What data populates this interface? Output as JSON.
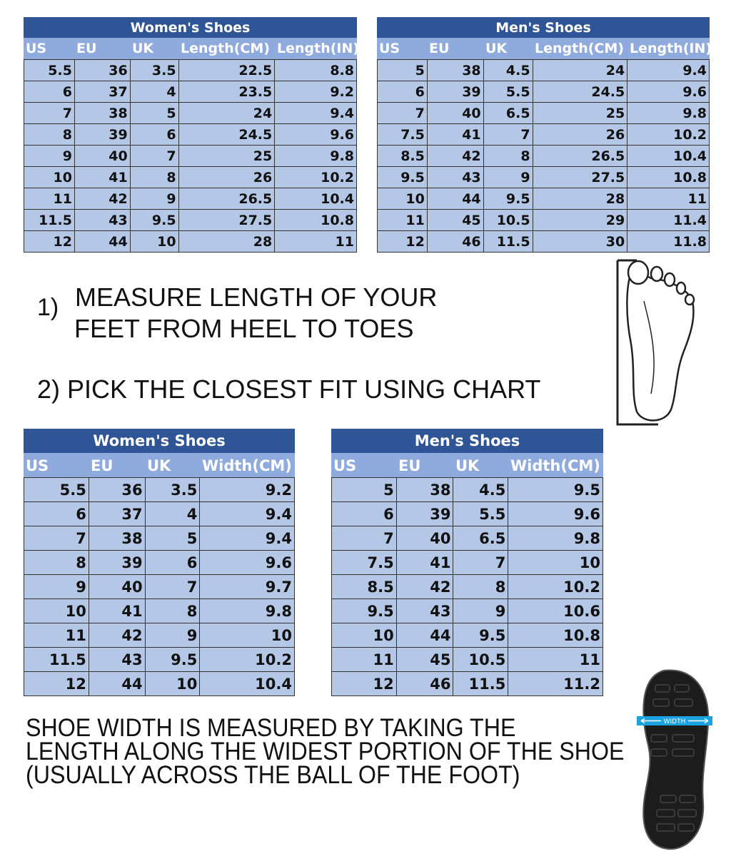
{
  "tables": {
    "women_length": {
      "title": "Women's Shoes",
      "headers": [
        "US",
        "EU",
        "UK",
        "Length(CM)",
        "Length(IN)"
      ],
      "rows": [
        [
          "5.5",
          "36",
          "3.5",
          "22.5",
          "8.8"
        ],
        [
          "6",
          "37",
          "4",
          "23.5",
          "9.2"
        ],
        [
          "7",
          "38",
          "5",
          "24",
          "9.4"
        ],
        [
          "8",
          "39",
          "6",
          "24.5",
          "9.6"
        ],
        [
          "9",
          "40",
          "7",
          "25",
          "9.8"
        ],
        [
          "10",
          "41",
          "8",
          "26",
          "10.2"
        ],
        [
          "11",
          "42",
          "9",
          "26.5",
          "10.4"
        ],
        [
          "11.5",
          "43",
          "9.5",
          "27.5",
          "10.8"
        ],
        [
          "12",
          "44",
          "10",
          "28",
          "11"
        ]
      ]
    },
    "men_length": {
      "title": "Men's Shoes",
      "headers": [
        "US",
        "EU",
        "UK",
        "Length(CM)",
        "Length(IN)"
      ],
      "rows": [
        [
          "5",
          "38",
          "4.5",
          "24",
          "9.4"
        ],
        [
          "6",
          "39",
          "5.5",
          "24.5",
          "9.6"
        ],
        [
          "7",
          "40",
          "6.5",
          "25",
          "9.8"
        ],
        [
          "7.5",
          "41",
          "7",
          "26",
          "10.2"
        ],
        [
          "8.5",
          "42",
          "8",
          "26.5",
          "10.4"
        ],
        [
          "9.5",
          "43",
          "9",
          "27.5",
          "10.8"
        ],
        [
          "10",
          "44",
          "9.5",
          "28",
          "11"
        ],
        [
          "11",
          "45",
          "10.5",
          "29",
          "11.4"
        ],
        [
          "12",
          "46",
          "11.5",
          "30",
          "11.8"
        ]
      ]
    },
    "women_width": {
      "title": "Women's Shoes",
      "headers": [
        "US",
        "EU",
        "UK",
        "Width(CM)"
      ],
      "rows": [
        [
          "5.5",
          "36",
          "3.5",
          "9.2"
        ],
        [
          "6",
          "37",
          "4",
          "9.4"
        ],
        [
          "7",
          "38",
          "5",
          "9.4"
        ],
        [
          "8",
          "39",
          "6",
          "9.6"
        ],
        [
          "9",
          "40",
          "7",
          "9.7"
        ],
        [
          "10",
          "41",
          "8",
          "9.8"
        ],
        [
          "11",
          "42",
          "9",
          "10"
        ],
        [
          "11.5",
          "43",
          "9.5",
          "10.2"
        ],
        [
          "12",
          "44",
          "10",
          "10.4"
        ]
      ]
    },
    "men_width": {
      "title": "Men's Shoes",
      "headers": [
        "US",
        "EU",
        "UK",
        "Width(CM)"
      ],
      "rows": [
        [
          "5",
          "38",
          "4.5",
          "9.5"
        ],
        [
          "6",
          "39",
          "5.5",
          "9.6"
        ],
        [
          "7",
          "40",
          "6.5",
          "9.8"
        ],
        [
          "7.5",
          "41",
          "7",
          "10"
        ],
        [
          "8.5",
          "42",
          "8",
          "10.2"
        ],
        [
          "9.5",
          "43",
          "9",
          "10.6"
        ],
        [
          "10",
          "44",
          "9.5",
          "10.8"
        ],
        [
          "11",
          "45",
          "10.5",
          "11"
        ],
        [
          "12",
          "46",
          "11.5",
          "11.2"
        ]
      ]
    }
  },
  "instructions": {
    "step1_number": "1)",
    "step1_line1": "MEASURE LENGTH OF YOUR",
    "step1_line2": "FEET FROM HEEL TO TOES",
    "step2": "2) PICK THE CLOSEST FIT USING CHART",
    "width_note": [
      "SHOE WIDTH IS MEASURED BY TAKING THE",
      "LENGTH ALONG THE WIDEST PORTION OF THE SHOE",
      "(USUALLY ACROSS THE BALL OF THE FOOT)"
    ]
  },
  "sole_image": {
    "label": "WIDTH"
  },
  "colors": {
    "title_bg": "#2f5597",
    "header_bg": "#8faadc",
    "cell_bg": "#b4c7e7",
    "width_band": "#1aa3e0"
  }
}
